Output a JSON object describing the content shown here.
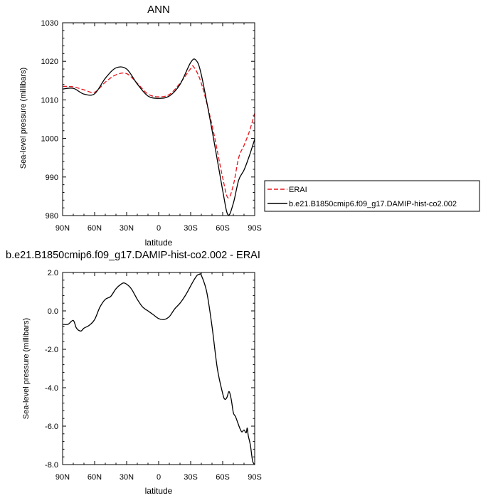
{
  "chart_data": [
    {
      "type": "line",
      "title": "ANN",
      "xlabel": "latitude",
      "ylabel": "Sea-level pressure (millibars)",
      "xlim": [
        90,
        -90
      ],
      "ylim": [
        980,
        1030
      ],
      "x_ticks": [
        90,
        60,
        30,
        0,
        -30,
        -60,
        -90
      ],
      "x_tick_labels": [
        "90N",
        "60N",
        "30N",
        "0",
        "30S",
        "60S",
        "90S"
      ],
      "y_ticks": [
        980,
        990,
        1000,
        1010,
        1020,
        1030
      ],
      "y_tick_labels": [
        "980",
        "990",
        "1000",
        "1010",
        "1020",
        "1030"
      ],
      "grid": false,
      "legend_placement": "right",
      "series": [
        {
          "name": "ERAI",
          "color": "#e8131b",
          "dash": "dashed",
          "x": [
            90,
            80,
            70,
            60,
            50,
            40,
            30,
            20,
            10,
            0,
            -10,
            -20,
            -30,
            -33,
            -40,
            -50,
            -60,
            -65,
            -70,
            -75,
            -80,
            -85,
            -90
          ],
          "y": [
            1013.5,
            1013.4,
            1012.6,
            1012.0,
            1014.6,
            1016.5,
            1016.8,
            1014.3,
            1011.5,
            1010.8,
            1011.4,
            1014.3,
            1018.1,
            1018.5,
            1014.3,
            1003.5,
            989.8,
            984.6,
            987.9,
            995.0,
            998.2,
            1001.8,
            1006.5
          ]
        },
        {
          "name": "b.e21.B1850cmip6.f09_g17.DAMIP-hist-co2.002",
          "color": "#000000",
          "dash": "solid",
          "x": [
            90,
            80,
            70,
            60,
            50,
            40,
            30,
            20,
            10,
            0,
            -10,
            -20,
            -30,
            -35,
            -40,
            -50,
            -60,
            -65,
            -70,
            -75,
            -80,
            -85,
            -90
          ],
          "y": [
            1012.8,
            1013.0,
            1011.5,
            1011.6,
            1015.6,
            1018.3,
            1018.0,
            1014.1,
            1011.0,
            1010.4,
            1011.0,
            1014.0,
            1019.7,
            1020.3,
            1016.5,
            1002.2,
            986.5,
            980.2,
            983.2,
            989.2,
            991.8,
            995.5,
            999.8
          ]
        }
      ]
    },
    {
      "type": "line",
      "title": "b.e21.B1850cmip6.f09_g17.DAMIP-hist-co2.002 - ERAI",
      "xlabel": "latitude",
      "ylabel": "Sea-level pressure (millibars)",
      "xlim": [
        90,
        -90
      ],
      "ylim": [
        -8.0,
        2.0
      ],
      "x_ticks": [
        90,
        60,
        30,
        0,
        -30,
        -60,
        -90
      ],
      "x_tick_labels": [
        "90N",
        "60N",
        "30N",
        "0",
        "30S",
        "60S",
        "90S"
      ],
      "y_ticks": [
        -8,
        -6,
        -4,
        -2,
        0,
        2
      ],
      "y_tick_labels": [
        "-8.0",
        "-6.0",
        "-4.0",
        "-2.0",
        "0.0",
        "2.0"
      ],
      "grid": false,
      "series": [
        {
          "color": "#000000",
          "dash": "solid",
          "x": [
            90,
            85,
            80,
            77,
            73,
            70,
            65,
            60,
            55,
            50,
            45,
            40,
            35,
            32,
            28,
            25,
            20,
            15,
            10,
            5,
            0,
            -5,
            -10,
            -15,
            -20,
            -25,
            -30,
            -33,
            -36,
            -38,
            -40,
            -45,
            -50,
            -55,
            -60,
            -62,
            -64,
            -66,
            -68,
            -70,
            -72,
            -74,
            -76,
            -78,
            -80,
            -82,
            -83,
            -84,
            -86,
            -88,
            -90
          ],
          "y": [
            -0.7,
            -0.7,
            -0.5,
            -0.9,
            -1.05,
            -0.9,
            -0.75,
            -0.45,
            0.2,
            0.6,
            0.75,
            1.15,
            1.4,
            1.45,
            1.3,
            1.1,
            0.6,
            0.2,
            0.0,
            -0.2,
            -0.4,
            -0.45,
            -0.3,
            0.1,
            0.4,
            0.8,
            1.3,
            1.6,
            1.85,
            1.9,
            1.85,
            1.0,
            -0.8,
            -3.0,
            -4.3,
            -4.6,
            -4.5,
            -4.2,
            -4.6,
            -5.3,
            -5.5,
            -5.8,
            -6.1,
            -6.3,
            -6.2,
            -6.35,
            -6.1,
            -6.5,
            -7.0,
            -7.8,
            -8.0
          ]
        }
      ]
    }
  ]
}
